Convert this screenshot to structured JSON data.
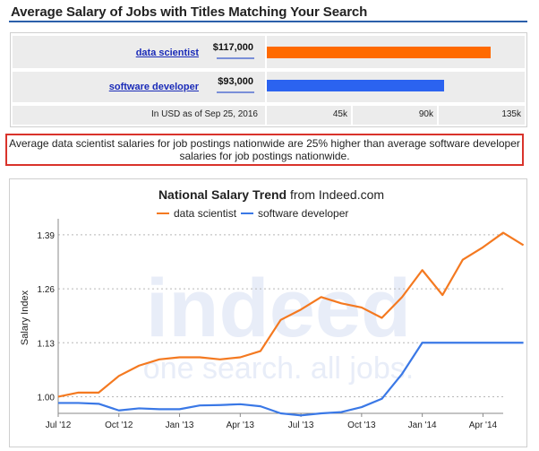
{
  "header": {
    "title": "Average Salary of Jobs with Titles Matching Your Search"
  },
  "salary_comparison": {
    "max_axis": 135000,
    "rows": [
      {
        "job": "data scientist",
        "salary_label": "$117,000",
        "salary": 117000,
        "color": "#ff6a00"
      },
      {
        "job": "software developer",
        "salary_label": "$93,000",
        "salary": 93000,
        "color": "#2b63f0"
      }
    ],
    "footer_note": "In USD as of Sep 25, 2016",
    "axis_ticks": [
      "45k",
      "90k",
      "135k"
    ]
  },
  "insight": {
    "text": "Average data scientist salaries for job postings nationwide are 25% higher than average software developer salaries for job postings nationwide."
  },
  "watermark": {
    "brand": "indeed",
    "tagline": "one search. all jobs."
  },
  "chart_data": {
    "type": "line",
    "title_bold": "National Salary Trend",
    "title_rest": " from Indeed.com",
    "ylabel": "Salary Index",
    "xlabel": "",
    "x_ticks": [
      "Jul '12",
      "Oct '12",
      "Jan '13",
      "Apr '13",
      "Jul '13",
      "Oct '13",
      "Jan '14",
      "Apr '14"
    ],
    "y_ticks": [
      "1.00",
      "1.13",
      "1.26",
      "1.39"
    ],
    "ylim": [
      0.96,
      1.42
    ],
    "xlim": [
      0,
      22
    ],
    "grid": true,
    "legend_position": "top",
    "series": [
      {
        "name": "data scientist",
        "color": "#f47920",
        "values": [
          1.0,
          1.01,
          1.01,
          1.05,
          1.075,
          1.09,
          1.095,
          1.095,
          1.09,
          1.095,
          1.11,
          1.185,
          1.21,
          1.24,
          1.225,
          1.215,
          1.19,
          1.24,
          1.305,
          1.245,
          1.33,
          1.36,
          1.395,
          1.365
        ]
      },
      {
        "name": "software developer",
        "color": "#3a78e6",
        "values": [
          0.985,
          0.985,
          0.983,
          0.967,
          0.972,
          0.97,
          0.97,
          0.979,
          0.98,
          0.982,
          0.977,
          0.96,
          0.955,
          0.96,
          0.963,
          0.975,
          0.995,
          1.055,
          1.13,
          1.13,
          1.13,
          1.13,
          1.13,
          1.13
        ]
      }
    ]
  }
}
